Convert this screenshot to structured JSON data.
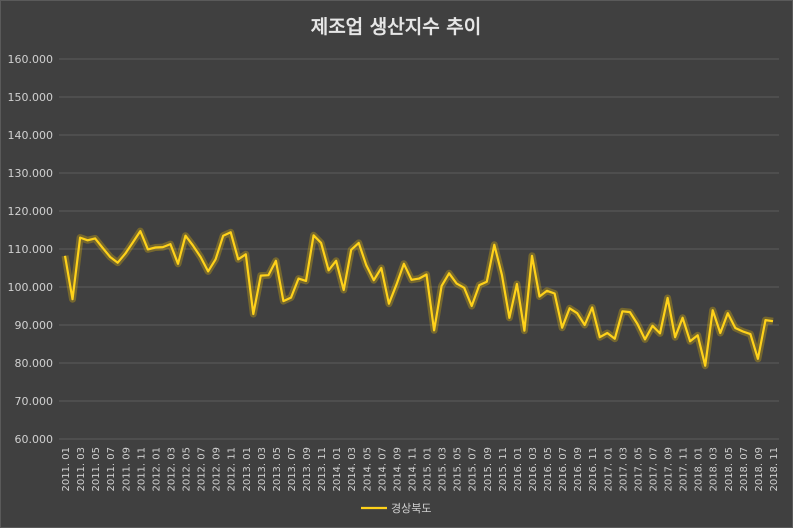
{
  "chart_data": {
    "type": "line",
    "title": "제조업 생산지수 추이",
    "xlabel": "",
    "ylabel": "",
    "ylim": [
      60,
      160
    ],
    "y_ticks": [
      "60.000",
      "70.000",
      "80.000",
      "90.000",
      "100.000",
      "110.000",
      "120.000",
      "130.000",
      "140.000",
      "150.000",
      "160.000"
    ],
    "grid": true,
    "legend_position": "bottom",
    "colors": {
      "background": "#404040",
      "series": "#ffd21a",
      "text": "#d0d0d0",
      "grid": "#5c5c5c"
    },
    "x_tick_labels": [
      "2011. 01",
      "2011. 03",
      "2011. 05",
      "2011. 07",
      "2011. 09",
      "2011. 11",
      "2012. 01",
      "2012. 03",
      "2012. 05",
      "2012. 07",
      "2012. 09",
      "2012. 11",
      "2013. 01",
      "2013. 03",
      "2013. 05",
      "2013. 07",
      "2013. 09",
      "2013. 11",
      "2014. 01",
      "2014. 03",
      "2014. 05",
      "2014. 07",
      "2014. 09",
      "2014. 11",
      "2015. 01",
      "2015. 03",
      "2015. 05",
      "2015. 07",
      "2015. 09",
      "2015. 11",
      "2016. 01",
      "2016. 03",
      "2016. 05",
      "2016. 07",
      "2016. 09",
      "2016. 11",
      "2017. 01",
      "2017. 03",
      "2017. 05",
      "2017. 07",
      "2017. 09",
      "2017. 11",
      "2018. 01",
      "2018. 03",
      "2018. 05",
      "2018. 07",
      "2018. 09",
      "2018. 11"
    ],
    "series": [
      {
        "name": "경상북도",
        "values": [
          108.2,
          96.8,
          113.0,
          112.3,
          112.8,
          110.3,
          107.9,
          106.4,
          108.8,
          111.7,
          114.7,
          109.9,
          110.4,
          110.5,
          111.3,
          106.1,
          113.5,
          110.9,
          107.9,
          104.1,
          107.3,
          113.5,
          114.4,
          107.3,
          108.6,
          92.9,
          103.0,
          103.1,
          106.9,
          96.3,
          97.2,
          102.2,
          101.6,
          113.6,
          111.6,
          104.4,
          106.9,
          99.2,
          109.8,
          111.6,
          105.7,
          101.8,
          105.0,
          95.6,
          100.6,
          106.1,
          101.9,
          102.2,
          103.3,
          88.6,
          100.3,
          103.6,
          100.9,
          99.8,
          95.0,
          100.5,
          101.4,
          111.1,
          103.2,
          91.9,
          100.8,
          88.5,
          108.2,
          97.5,
          99.0,
          98.3,
          89.3,
          94.4,
          93.1,
          90.0,
          94.6,
          86.8,
          87.9,
          86.4,
          93.6,
          93.4,
          90.3,
          86.2,
          89.8,
          87.8,
          97.1,
          86.8,
          91.9,
          85.7,
          87.3,
          79.3,
          93.9,
          87.9,
          93.1,
          89.2,
          88.3,
          87.6,
          81.1,
          91.3,
          91.0
        ]
      }
    ]
  }
}
